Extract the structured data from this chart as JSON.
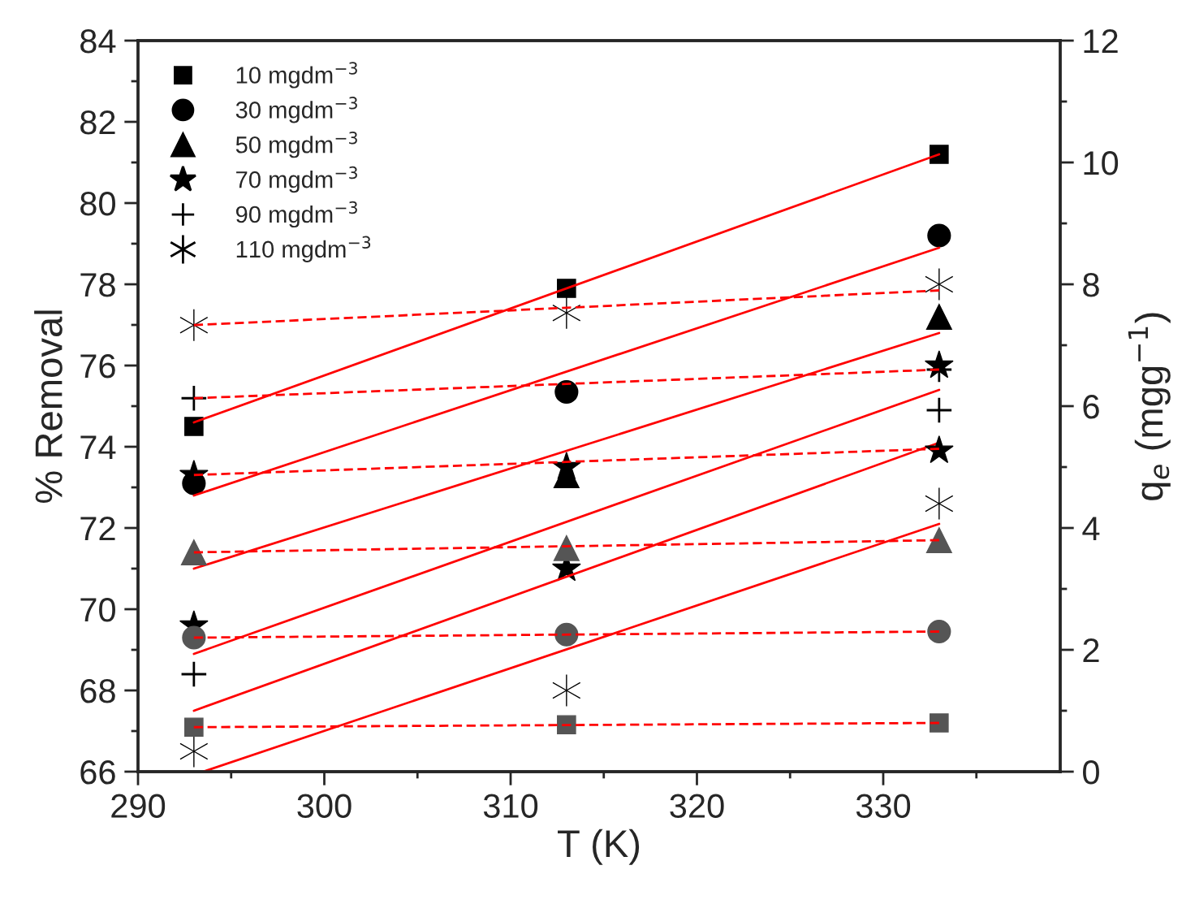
{
  "chart_data": {
    "type": "scatter",
    "xlabel": "T (K)",
    "ylabel": "% Removal",
    "y2label": "q$_{e}$ (mgg$^{−1}$)",
    "x": [
      293,
      313,
      333
    ],
    "xlim": [
      290,
      339.5
    ],
    "xticks": [
      290,
      300,
      310,
      320,
      330
    ],
    "ylim": [
      66,
      84
    ],
    "yticks": [
      66,
      68,
      70,
      72,
      74,
      76,
      78,
      80,
      82,
      84
    ],
    "y2lim": [
      0,
      12
    ],
    "y2ticks": [
      0,
      2,
      4,
      6,
      8,
      10,
      12
    ],
    "legend": "top left",
    "grid": false,
    "series": [
      {
        "name": "10 mgdm$^{−3}$",
        "marker": "square",
        "color": "#000000",
        "axis": "y",
        "values": [
          74.5,
          77.9,
          81.2
        ]
      },
      {
        "name": "30 mgdm$^{−3}$",
        "marker": "circle",
        "color": "#000000",
        "axis": "y",
        "values": [
          73.1,
          75.35,
          79.2
        ]
      },
      {
        "name": "50 mgdm$^{−3}$",
        "marker": "triangle",
        "color": "#000000",
        "axis": "y",
        "values": [
          null,
          73.3,
          77.2
        ]
      },
      {
        "name": "70 mgdm$^{−3}$",
        "marker": "star",
        "color": "#000000",
        "axis": "y",
        "values": [
          69.6,
          71.0,
          76.0
        ]
      },
      {
        "name": "90 mgdm$^{−3}$",
        "marker": "plus",
        "color": "#000000",
        "axis": "y",
        "values": [
          68.4,
          null,
          74.9
        ]
      },
      {
        "name": "110 mgdm$^{−3}$",
        "marker": "cross",
        "color": "#000000",
        "axis": "y",
        "values": [
          66.5,
          68.0,
          72.6
        ]
      },
      {
        "marker": "square",
        "color": "#555555",
        "axis": "y2",
        "values": [
          0.73,
          0.77,
          0.8
        ]
      },
      {
        "marker": "circle",
        "color": "#555555",
        "axis": "y2",
        "values": [
          2.2,
          2.25,
          2.3
        ]
      },
      {
        "marker": "triangle",
        "color": "#555555",
        "axis": "y2",
        "values": [
          3.6,
          3.67,
          3.8
        ]
      },
      {
        "marker": "star",
        "color": "#000000",
        "axis": "y2",
        "values": [
          4.87,
          5.0,
          5.27
        ]
      },
      {
        "marker": "plus",
        "color": "#000000",
        "axis": "y2",
        "values": [
          6.13,
          null,
          6.6
        ]
      },
      {
        "marker": "cross",
        "color": "#000000",
        "axis": "y2",
        "values": [
          7.33,
          7.53,
          8.0
        ]
      },
      {
        "type": "line",
        "line_style": "solid",
        "color": "#ff0000",
        "axis": "y",
        "x": [
          293,
          333
        ],
        "values": [
          74.6,
          81.2
        ]
      },
      {
        "type": "line",
        "line_style": "solid",
        "color": "#ff0000",
        "axis": "y",
        "x": [
          293,
          333
        ],
        "values": [
          72.8,
          78.9
        ]
      },
      {
        "type": "line",
        "line_style": "solid",
        "color": "#ff0000",
        "axis": "y",
        "x": [
          293,
          333
        ],
        "values": [
          71.0,
          76.8
        ]
      },
      {
        "type": "line",
        "line_style": "solid",
        "color": "#ff0000",
        "axis": "y",
        "x": [
          293,
          333
        ],
        "values": [
          68.9,
          75.4
        ]
      },
      {
        "type": "line",
        "line_style": "solid",
        "color": "#ff0000",
        "axis": "y",
        "x": [
          293,
          333
        ],
        "values": [
          67.5,
          74.1
        ]
      },
      {
        "type": "line",
        "line_style": "solid",
        "color": "#ff0000",
        "axis": "y",
        "x": [
          293.5,
          333
        ],
        "values": [
          66.0,
          72.1
        ]
      },
      {
        "type": "line",
        "line_style": "dashed",
        "color": "#ff0000",
        "axis": "y2",
        "x": [
          293,
          333
        ],
        "values": [
          0.73,
          0.8
        ]
      },
      {
        "type": "line",
        "line_style": "dashed",
        "color": "#ff0000",
        "axis": "y2",
        "x": [
          293,
          333
        ],
        "values": [
          2.2,
          2.3
        ]
      },
      {
        "type": "line",
        "line_style": "dashed",
        "color": "#ff0000",
        "axis": "y2",
        "x": [
          293,
          333
        ],
        "values": [
          3.6,
          3.8
        ]
      },
      {
        "type": "line",
        "line_style": "dashed",
        "color": "#ff0000",
        "axis": "y2",
        "x": [
          293,
          333
        ],
        "values": [
          4.87,
          5.3
        ]
      },
      {
        "type": "line",
        "line_style": "dashed",
        "color": "#ff0000",
        "axis": "y2",
        "x": [
          293,
          333
        ],
        "values": [
          6.13,
          6.6
        ]
      },
      {
        "type": "line",
        "line_style": "dashed",
        "color": "#ff0000",
        "axis": "y2",
        "x": [
          293,
          333
        ],
        "values": [
          7.33,
          7.9
        ]
      }
    ]
  }
}
